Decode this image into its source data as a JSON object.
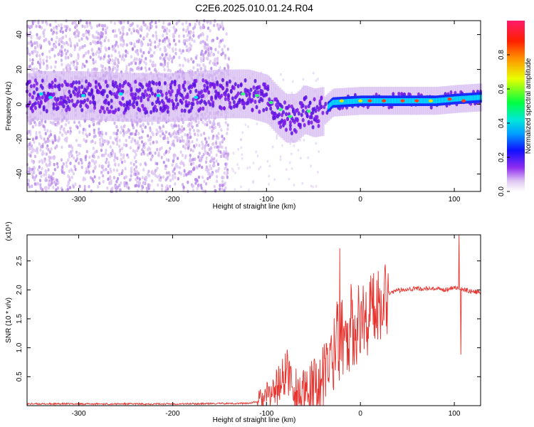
{
  "title": "C2E6.2025.010.01.24.R04",
  "chart_data": [
    {
      "type": "heatmap",
      "xlabel": "Height of straight line (km)",
      "ylabel": "Frequency (Hz)",
      "xlim": [
        -355,
        128
      ],
      "ylim": [
        -50,
        48
      ],
      "xticks": [
        "-300",
        "-200",
        "-100",
        "0",
        "100"
      ],
      "yticks": [
        "-40",
        "-20",
        "0",
        "20",
        "40"
      ],
      "colorbar": {
        "label": "Normalized spectral amplitude",
        "ticks": [
          "0.0",
          "0.2",
          "0.4",
          "0.6",
          "0.8"
        ],
        "range": [
          0,
          1
        ]
      },
      "ridge": [
        {
          "x": -350,
          "y": 5
        },
        {
          "x": -300,
          "y": 5
        },
        {
          "x": -250,
          "y": 4
        },
        {
          "x": -200,
          "y": 4
        },
        {
          "x": -150,
          "y": 6
        },
        {
          "x": -120,
          "y": 6
        },
        {
          "x": -100,
          "y": 3
        },
        {
          "x": -90,
          "y": -3
        },
        {
          "x": -80,
          "y": -8
        },
        {
          "x": -70,
          "y": -8
        },
        {
          "x": -60,
          "y": -3
        },
        {
          "x": -50,
          "y": -5
        },
        {
          "x": -40,
          "y": -4
        },
        {
          "x": -30,
          "y": 1
        },
        {
          "x": 0,
          "y": 2
        },
        {
          "x": 50,
          "y": 2
        },
        {
          "x": 80,
          "y": 2
        },
        {
          "x": 100,
          "y": 3
        },
        {
          "x": 128,
          "y": 4
        }
      ]
    },
    {
      "type": "line",
      "xlabel": "Height of straight line (km)",
      "ylabel": "SNR (10 * v/v)",
      "scale_label": "(x10⁴)",
      "xlim": [
        -355,
        128
      ],
      "ylim": [
        0,
        2.95
      ],
      "xticks": [
        "-300",
        "-200",
        "-100",
        "0",
        "100"
      ],
      "yticks": [
        "0.5",
        "1.0",
        "1.5",
        "2.0",
        "2.5"
      ],
      "series_color": "#e8322d",
      "series": [
        {
          "x": -355,
          "y": 0.03
        },
        {
          "x": -300,
          "y": 0.03
        },
        {
          "x": -200,
          "y": 0.03
        },
        {
          "x": -120,
          "y": 0.04
        },
        {
          "x": -105,
          "y": 0.08
        },
        {
          "x": -95,
          "y": 0.2
        },
        {
          "x": -85,
          "y": 0.4
        },
        {
          "x": -78,
          "y": 0.6
        },
        {
          "x": -70,
          "y": 0.3
        },
        {
          "x": -60,
          "y": 0.1
        },
        {
          "x": -50,
          "y": 0.25
        },
        {
          "x": -40,
          "y": 0.4
        },
        {
          "x": -30,
          "y": 0.9
        },
        {
          "x": -20,
          "y": 1.2
        },
        {
          "x": -10,
          "y": 1.3
        },
        {
          "x": 0,
          "y": 1.45
        },
        {
          "x": 10,
          "y": 1.6
        },
        {
          "x": 20,
          "y": 1.8
        },
        {
          "x": 30,
          "y": 1.95
        },
        {
          "x": 50,
          "y": 2.02
        },
        {
          "x": 70,
          "y": 2.02
        },
        {
          "x": 90,
          "y": 2.0
        },
        {
          "x": 100,
          "y": 2.05
        },
        {
          "x": 110,
          "y": 2.0
        },
        {
          "x": 128,
          "y": 1.95
        }
      ],
      "spikes": [
        {
          "x": -22,
          "y": 2.72
        },
        {
          "x": 105,
          "y": 2.95
        },
        {
          "x": 107,
          "y": 0.88
        },
        {
          "x": -80,
          "y": 0.9
        },
        {
          "x": -25,
          "y": 1.8
        },
        {
          "x": -10,
          "y": 2.1
        }
      ]
    }
  ]
}
